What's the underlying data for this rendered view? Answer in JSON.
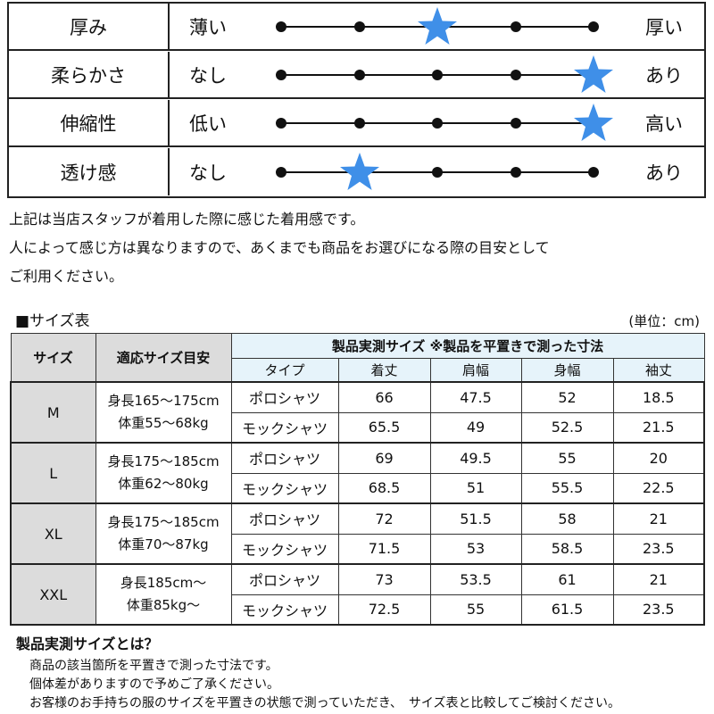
{
  "feel": [
    {
      "name": "厚み",
      "low": "薄い",
      "high": "厚い",
      "level": 3
    },
    {
      "name": "柔らかさ",
      "low": "なし",
      "high": "あり",
      "level": 5
    },
    {
      "name": "伸縮性",
      "low": "低い",
      "high": "高い",
      "level": 5
    },
    {
      "name": "透け感",
      "low": "なし",
      "high": "あり",
      "level": 2
    }
  ],
  "scale_points": 5,
  "star_color": "#3f8fe8",
  "notes": [
    "上記は当店スタッフが着用した際に感じた着用感です。",
    "人によって感じ方は異なりますので、あくまでも商品をお選びになる際の目安として",
    "ご利用ください。"
  ],
  "size_table": {
    "heading": "■サイズ表",
    "unit": "(単位：cm)",
    "col_size": "サイズ",
    "col_guide": "適応サイズ目安",
    "col_measured": "製品実測サイズ ※製品を平置きで測った寸法",
    "sub_headers": [
      "タイプ",
      "着丈",
      "肩幅",
      "身幅",
      "袖丈"
    ],
    "sizes": [
      {
        "name": "M",
        "guide": [
          "身長165～175cm",
          "体重55～68kg"
        ],
        "rows": [
          [
            "ポロシャツ",
            "66",
            "47.5",
            "52",
            "18.5"
          ],
          [
            "モックシャツ",
            "65.5",
            "49",
            "52.5",
            "21.5"
          ]
        ]
      },
      {
        "name": "L",
        "guide": [
          "身長175～185cm",
          "体重62～80kg"
        ],
        "rows": [
          [
            "ポロシャツ",
            "69",
            "49.5",
            "55",
            "20"
          ],
          [
            "モックシャツ",
            "68.5",
            "51",
            "55.5",
            "22.5"
          ]
        ]
      },
      {
        "name": "XL",
        "guide": [
          "身長175～185cm",
          "体重70～87kg"
        ],
        "rows": [
          [
            "ポロシャツ",
            "72",
            "51.5",
            "58",
            "21"
          ],
          [
            "モックシャツ",
            "71.5",
            "53",
            "58.5",
            "23.5"
          ]
        ]
      },
      {
        "name": "XXL",
        "guide": [
          "身長185cm～",
          "体重85kg～"
        ],
        "rows": [
          [
            "ポロシャツ",
            "73",
            "53.5",
            "61",
            "21"
          ],
          [
            "モックシャツ",
            "72.5",
            "55",
            "61.5",
            "23.5"
          ]
        ]
      }
    ]
  },
  "footer": {
    "title": "製品実測サイズとは？",
    "lines": [
      "商品の該当箇所を平置きで測った寸法です。",
      "個体差がありますので予めご了承ください。",
      "お客様のお手持ちの服のサイズを平置きの状態で測っていただき、　サイズ表と比較してご検討ください。"
    ]
  }
}
